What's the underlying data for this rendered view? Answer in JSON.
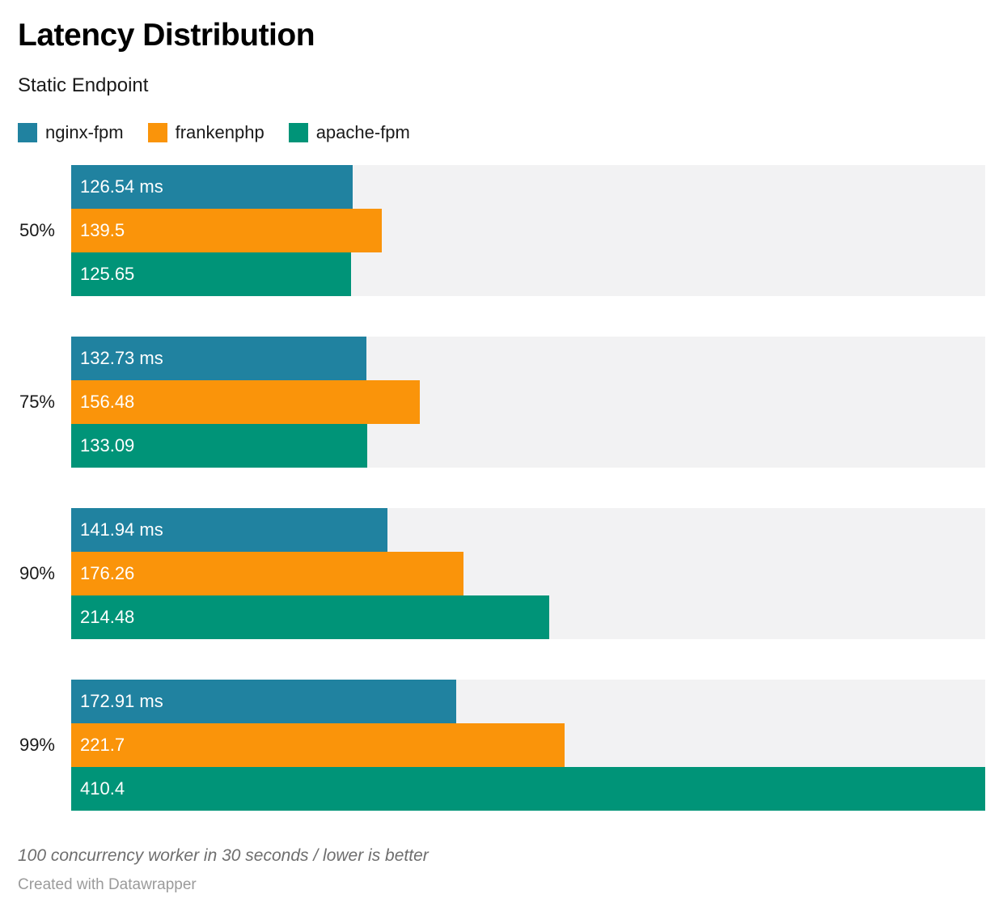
{
  "header": {
    "title": "Latency Distribution",
    "subtitle": "Static Endpoint"
  },
  "colors": {
    "nginx_fpm": "#2082a0",
    "frankenphp": "#fa940a",
    "apache_fpm": "#009478",
    "track_background": "#f2f2f3",
    "bar_label_text": "#ffffff"
  },
  "chart_data": {
    "type": "bar",
    "orientation": "horizontal",
    "grouped": true,
    "unit": "ms",
    "xlim": [
      0,
      410.4
    ],
    "grid": false,
    "legend_position": "top",
    "title": "Latency Distribution",
    "subtitle": "Static Endpoint",
    "categories": [
      "50%",
      "75%",
      "90%",
      "99%"
    ],
    "series": [
      {
        "name": "nginx-fpm",
        "color": "#2082a0",
        "values": [
          126.54,
          132.73,
          141.94,
          172.91
        ],
        "labels": [
          "126.54 ms",
          "132.73 ms",
          "141.94 ms",
          "172.91 ms"
        ]
      },
      {
        "name": "frankenphp",
        "color": "#fa940a",
        "values": [
          139.5,
          156.48,
          176.26,
          221.7
        ],
        "labels": [
          "139.5",
          "156.48",
          "176.26",
          "221.7"
        ]
      },
      {
        "name": "apache-fpm",
        "color": "#009478",
        "values": [
          125.65,
          133.09,
          214.48,
          410.4
        ],
        "labels": [
          "125.65",
          "133.09",
          "214.48",
          "410.4"
        ]
      }
    ]
  },
  "footer": {
    "note": "100 concurrency worker in 30 seconds / lower is better",
    "attribution": "Created with Datawrapper"
  }
}
